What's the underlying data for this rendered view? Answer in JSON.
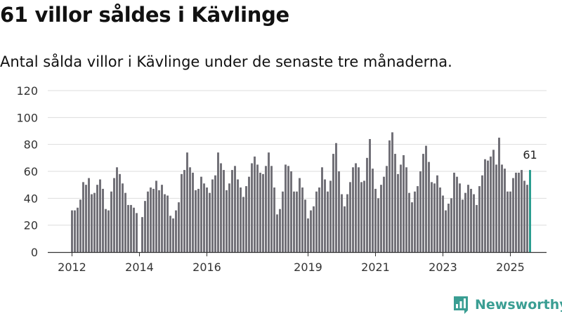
{
  "title": "61 villor såldes i Kävlinge",
  "subtitle": "Antal sålda villor i Kävlinge under de senaste tre månaderna.",
  "brand": "Newsworthy",
  "colors": {
    "bar": "#727178",
    "highlight": "#2a9d8f",
    "grid": "#dddddd",
    "axis": "#333333",
    "brand": "#3a9e93"
  },
  "chart_data": {
    "type": "bar",
    "title": "61 villor såldes i Kävlinge",
    "subtitle": "Antal sålda villor i Kävlinge under de senaste tre månaderna.",
    "xlabel": "",
    "ylabel": "",
    "ylim": [
      0,
      120
    ],
    "yticks": [
      0,
      20,
      40,
      60,
      80,
      100,
      120
    ],
    "xticks": [
      {
        "label": "2012",
        "index": 0
      },
      {
        "label": "2014",
        "index": 24
      },
      {
        "label": "2016",
        "index": 48
      },
      {
        "label": "2019",
        "index": 84
      },
      {
        "label": "2021",
        "index": 108
      },
      {
        "label": "2023",
        "index": 132
      },
      {
        "label": "2025",
        "index": 156
      }
    ],
    "grid": true,
    "start": "2012-01",
    "period": "month",
    "highlight_label": "61",
    "values": [
      31,
      31,
      33,
      39,
      52,
      50,
      55,
      43,
      44,
      50,
      54,
      47,
      32,
      31,
      45,
      55,
      63,
      58,
      51,
      44,
      35,
      35,
      33,
      29,
      null,
      26,
      38,
      45,
      48,
      47,
      53,
      46,
      50,
      43,
      42,
      27,
      25,
      31,
      37,
      58,
      61,
      74,
      63,
      59,
      46,
      47,
      56,
      51,
      48,
      44,
      54,
      57,
      74,
      66,
      61,
      46,
      51,
      61,
      64,
      54,
      48,
      41,
      49,
      56,
      66,
      71,
      65,
      59,
      58,
      64,
      74,
      64,
      48,
      28,
      32,
      45,
      65,
      64,
      60,
      45,
      45,
      55,
      48,
      39,
      25,
      31,
      34,
      45,
      48,
      63,
      54,
      45,
      53,
      73,
      81,
      60,
      43,
      34,
      43,
      52,
      63,
      66,
      63,
      52,
      53,
      70,
      84,
      62,
      47,
      40,
      50,
      56,
      64,
      83,
      89,
      73,
      58,
      65,
      72,
      63,
      44,
      37,
      45,
      49,
      60,
      73,
      79,
      67,
      52,
      51,
      57,
      48,
      42,
      31,
      36,
      40,
      59,
      56,
      51,
      39,
      44,
      50,
      47,
      43,
      35,
      49,
      57,
      69,
      68,
      71,
      76,
      65,
      85,
      65,
      62,
      45,
      45,
      55,
      59,
      59,
      61,
      53,
      50,
      61
    ]
  }
}
